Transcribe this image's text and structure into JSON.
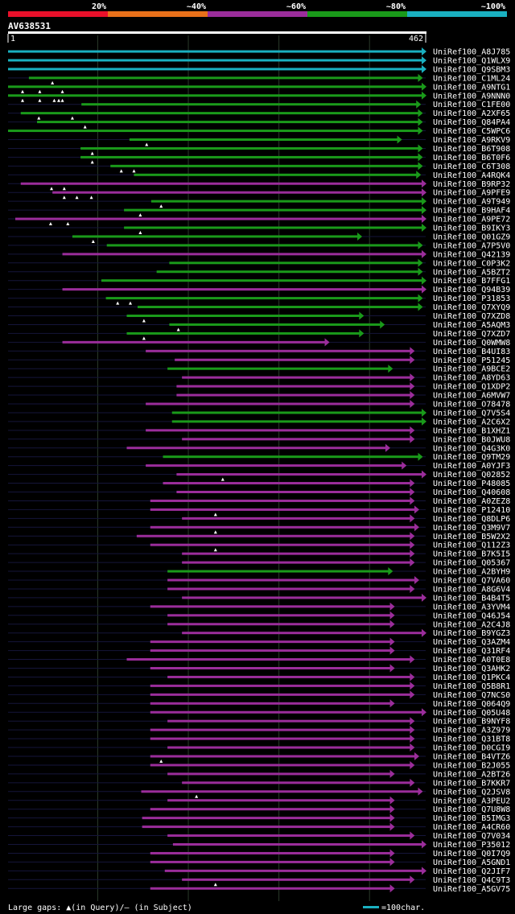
{
  "query_id": "AV638531",
  "query_start": "1",
  "query_end": "462",
  "identity_legend": [
    {
      "label": "20%",
      "color": "#e8102a"
    },
    {
      "label": "~40%",
      "color": "#e8701a"
    },
    {
      "label": "~60%",
      "color": "#9b2d9b"
    },
    {
      "label": "~80%",
      "color": "#1a9a1a"
    },
    {
      "label": "~100%",
      "color": "#1ab0c0"
    }
  ],
  "footer": {
    "gaps_label": "Large gaps: ▲(in Query)/– (in Subject)",
    "scale_label": "=100char."
  },
  "colors": {
    "cyan": "#1ab0c0",
    "green": "#1a9a1a",
    "purple": "#9b2d9b"
  },
  "hits": [
    {
      "id": "UniRef100_A8J785",
      "c": "cyan",
      "s": 1,
      "e": 462,
      "t": []
    },
    {
      "id": "UniRef100_Q1WLX9",
      "c": "cyan",
      "s": 1,
      "e": 462,
      "t": []
    },
    {
      "id": "UniRef100_Q9SBM3",
      "c": "cyan",
      "s": 1,
      "e": 462,
      "t": []
    },
    {
      "id": "UniRef100_C1ML24",
      "c": "green",
      "s": 24,
      "e": 458,
      "t": [
        50
      ]
    },
    {
      "id": "UniRef100_A9NTG1",
      "c": "green",
      "s": 1,
      "e": 462,
      "t": [
        17,
        36,
        61
      ]
    },
    {
      "id": "UniRef100_A9NNN0",
      "c": "green",
      "s": 1,
      "e": 462,
      "t": [
        17,
        36,
        52,
        57,
        61
      ]
    },
    {
      "id": "UniRef100_C1FE00",
      "c": "green",
      "s": 82,
      "e": 456,
      "t": []
    },
    {
      "id": "UniRef100_A2XF65",
      "c": "green",
      "s": 15,
      "e": 458,
      "t": [
        35,
        72
      ]
    },
    {
      "id": "UniRef100_Q84PA4",
      "c": "green",
      "s": 33,
      "e": 458,
      "t": [
        86
      ]
    },
    {
      "id": "UniRef100_C5WPC6",
      "c": "green",
      "s": 1,
      "e": 458,
      "t": []
    },
    {
      "id": "UniRef100_A9RKV9",
      "c": "green",
      "s": 135,
      "e": 435,
      "t": [
        154
      ]
    },
    {
      "id": "UniRef100_B6T908",
      "c": "green",
      "s": 81,
      "e": 458,
      "t": [
        94
      ]
    },
    {
      "id": "UniRef100_B6T0F6",
      "c": "green",
      "s": 81,
      "e": 458,
      "t": [
        94
      ]
    },
    {
      "id": "UniRef100_C6T308",
      "c": "green",
      "s": 114,
      "e": 458,
      "t": [
        126,
        140
      ]
    },
    {
      "id": "UniRef100_A4RQK4",
      "c": "green",
      "s": 140,
      "e": 456,
      "t": []
    },
    {
      "id": "UniRef100_B9RP32",
      "c": "purple",
      "s": 15,
      "e": 462,
      "t": [
        49,
        63
      ]
    },
    {
      "id": "UniRef100_A9PFE9",
      "c": "purple",
      "s": 50,
      "e": 462,
      "t": [
        63,
        77,
        93
      ]
    },
    {
      "id": "UniRef100_A9T949",
      "c": "green",
      "s": 159,
      "e": 462,
      "t": [
        170
      ]
    },
    {
      "id": "UniRef100_B9HAF4",
      "c": "green",
      "s": 129,
      "e": 462,
      "t": [
        147
      ]
    },
    {
      "id": "UniRef100_A9PE72",
      "c": "purple",
      "s": 9,
      "e": 462,
      "t": [
        48,
        67
      ]
    },
    {
      "id": "UniRef100_B9IKY3",
      "c": "green",
      "s": 129,
      "e": 462,
      "t": [
        147
      ]
    },
    {
      "id": "UniRef100_Q01GZ9",
      "c": "green",
      "s": 72,
      "e": 391,
      "t": [
        95
      ]
    },
    {
      "id": "UniRef100_A7P5V0",
      "c": "green",
      "s": 110,
      "e": 458,
      "t": []
    },
    {
      "id": "UniRef100_Q42139",
      "c": "purple",
      "s": 61,
      "e": 462,
      "t": []
    },
    {
      "id": "UniRef100_C0P3K2",
      "c": "green",
      "s": 179,
      "e": 458,
      "t": []
    },
    {
      "id": "UniRef100_A5BZT2",
      "c": "green",
      "s": 165,
      "e": 458,
      "t": []
    },
    {
      "id": "UniRef100_B7FFG1",
      "c": "green",
      "s": 104,
      "e": 462,
      "t": []
    },
    {
      "id": "UniRef100_Q94B39",
      "c": "purple",
      "s": 61,
      "e": 462,
      "t": []
    },
    {
      "id": "UniRef100_P31853",
      "c": "green",
      "s": 109,
      "e": 458,
      "t": [
        122,
        136
      ]
    },
    {
      "id": "UniRef100_Q7XYQ9",
      "c": "green",
      "s": 144,
      "e": 458,
      "t": []
    },
    {
      "id": "UniRef100_Q7XZD8",
      "c": "green",
      "s": 132,
      "e": 393,
      "t": [
        151
      ]
    },
    {
      "id": "UniRef100_A5AQM3",
      "c": "green",
      "s": 179,
      "e": 416,
      "t": [
        189
      ]
    },
    {
      "id": "UniRef100_Q7XZD7",
      "c": "green",
      "s": 132,
      "e": 393,
      "t": [
        151
      ]
    },
    {
      "id": "UniRef100_Q0WMW8",
      "c": "purple",
      "s": 61,
      "e": 355,
      "t": []
    },
    {
      "id": "UniRef100_B4UI83",
      "c": "purple",
      "s": 153,
      "e": 449,
      "t": []
    },
    {
      "id": "UniRef100_P51245",
      "c": "purple",
      "s": 185,
      "e": 449,
      "t": []
    },
    {
      "id": "UniRef100_A9BCE2",
      "c": "green",
      "s": 177,
      "e": 425,
      "t": []
    },
    {
      "id": "UniRef100_A8YD63",
      "c": "purple",
      "s": 193,
      "e": 449,
      "t": []
    },
    {
      "id": "UniRef100_Q1XDP2",
      "c": "purple",
      "s": 187,
      "e": 449,
      "t": []
    },
    {
      "id": "UniRef100_A6MVW7",
      "c": "purple",
      "s": 187,
      "e": 449,
      "t": []
    },
    {
      "id": "UniRef100_O78478",
      "c": "purple",
      "s": 153,
      "e": 449,
      "t": []
    },
    {
      "id": "UniRef100_Q7V5S4",
      "c": "green",
      "s": 182,
      "e": 462,
      "t": []
    },
    {
      "id": "UniRef100_A2C6X2",
      "c": "green",
      "s": 182,
      "e": 462,
      "t": []
    },
    {
      "id": "UniRef100_B1XHZ1",
      "c": "purple",
      "s": 153,
      "e": 449,
      "t": []
    },
    {
      "id": "UniRef100_B0JWU8",
      "c": "purple",
      "s": 193,
      "e": 449,
      "t": []
    },
    {
      "id": "UniRef100_Q4G3K0",
      "c": "purple",
      "s": 132,
      "e": 422,
      "t": []
    },
    {
      "id": "UniRef100_Q9TM29",
      "c": "green",
      "s": 172,
      "e": 458,
      "t": []
    },
    {
      "id": "UniRef100_A0YJF3",
      "c": "purple",
      "s": 153,
      "e": 440,
      "t": []
    },
    {
      "id": "UniRef100_Q02852",
      "c": "purple",
      "s": 187,
      "e": 462,
      "t": [
        238
      ]
    },
    {
      "id": "UniRef100_P48085",
      "c": "purple",
      "s": 172,
      "e": 449,
      "t": []
    },
    {
      "id": "UniRef100_Q40608",
      "c": "purple",
      "s": 187,
      "e": 449,
      "t": []
    },
    {
      "id": "UniRef100_A0ZEZ8",
      "c": "purple",
      "s": 158,
      "e": 449,
      "t": []
    },
    {
      "id": "UniRef100_P12410",
      "c": "purple",
      "s": 158,
      "e": 454,
      "t": [
        230
      ]
    },
    {
      "id": "UniRef100_Q8DLP6",
      "c": "purple",
      "s": 193,
      "e": 449,
      "t": []
    },
    {
      "id": "UniRef100_Q3M9V7",
      "c": "purple",
      "s": 158,
      "e": 454,
      "t": [
        230
      ]
    },
    {
      "id": "UniRef100_B5W2X2",
      "c": "purple",
      "s": 143,
      "e": 449,
      "t": []
    },
    {
      "id": "UniRef100_Q112Z3",
      "c": "purple",
      "s": 158,
      "e": 449,
      "t": [
        230
      ]
    },
    {
      "id": "UniRef100_B7K5I5",
      "c": "purple",
      "s": 193,
      "e": 449,
      "t": []
    },
    {
      "id": "UniRef100_Q05367",
      "c": "purple",
      "s": 193,
      "e": 449,
      "t": []
    },
    {
      "id": "UniRef100_A2BYH9",
      "c": "green",
      "s": 177,
      "e": 425,
      "t": []
    },
    {
      "id": "UniRef100_Q7VA60",
      "c": "purple",
      "s": 177,
      "e": 454,
      "t": []
    },
    {
      "id": "UniRef100_A8G6V4",
      "c": "purple",
      "s": 177,
      "e": 449,
      "t": []
    },
    {
      "id": "UniRef100_B4B4T5",
      "c": "purple",
      "s": 193,
      "e": 462,
      "t": []
    },
    {
      "id": "UniRef100_A3YVM4",
      "c": "purple",
      "s": 158,
      "e": 427,
      "t": []
    },
    {
      "id": "UniRef100_Q46J54",
      "c": "purple",
      "s": 177,
      "e": 427,
      "t": []
    },
    {
      "id": "UniRef100_A2C4J8",
      "c": "purple",
      "s": 177,
      "e": 427,
      "t": []
    },
    {
      "id": "UniRef100_B9YGZ3",
      "c": "purple",
      "s": 193,
      "e": 462,
      "t": []
    },
    {
      "id": "UniRef100_Q3AZM4",
      "c": "purple",
      "s": 158,
      "e": 427,
      "t": []
    },
    {
      "id": "UniRef100_Q31RF4",
      "c": "purple",
      "s": 158,
      "e": 427,
      "t": []
    },
    {
      "id": "UniRef100_A0T0E8",
      "c": "purple",
      "s": 132,
      "e": 449,
      "t": []
    },
    {
      "id": "UniRef100_Q3AHK2",
      "c": "purple",
      "s": 158,
      "e": 427,
      "t": []
    },
    {
      "id": "UniRef100_Q1PKC4",
      "c": "purple",
      "s": 177,
      "e": 449,
      "t": []
    },
    {
      "id": "UniRef100_Q5B8R1",
      "c": "purple",
      "s": 158,
      "e": 449,
      "t": []
    },
    {
      "id": "UniRef100_Q7NCS0",
      "c": "purple",
      "s": 158,
      "e": 449,
      "t": []
    },
    {
      "id": "UniRef100_Q064Q9",
      "c": "purple",
      "s": 158,
      "e": 427,
      "t": []
    },
    {
      "id": "UniRef100_Q05U48",
      "c": "purple",
      "s": 158,
      "e": 462,
      "t": []
    },
    {
      "id": "UniRef100_B9NYF8",
      "c": "purple",
      "s": 177,
      "e": 449,
      "t": []
    },
    {
      "id": "UniRef100_A3Z979",
      "c": "purple",
      "s": 158,
      "e": 449,
      "t": []
    },
    {
      "id": "UniRef100_Q31BT8",
      "c": "purple",
      "s": 158,
      "e": 449,
      "t": []
    },
    {
      "id": "UniRef100_D0CGI9",
      "c": "purple",
      "s": 177,
      "e": 449,
      "t": []
    },
    {
      "id": "UniRef100_B4VTZ6",
      "c": "purple",
      "s": 158,
      "e": 454,
      "t": [
        170
      ]
    },
    {
      "id": "UniRef100_B2J055",
      "c": "purple",
      "s": 158,
      "e": 449,
      "t": []
    },
    {
      "id": "UniRef100_A2BT26",
      "c": "purple",
      "s": 177,
      "e": 427,
      "t": []
    },
    {
      "id": "UniRef100_B7KKR7",
      "c": "purple",
      "s": 193,
      "e": 449,
      "t": []
    },
    {
      "id": "UniRef100_Q2JSV8",
      "c": "purple",
      "s": 148,
      "e": 458,
      "t": [
        209
      ]
    },
    {
      "id": "UniRef100_A3PEU2",
      "c": "purple",
      "s": 177,
      "e": 427,
      "t": []
    },
    {
      "id": "UniRef100_Q7U8W8",
      "c": "purple",
      "s": 158,
      "e": 427,
      "t": []
    },
    {
      "id": "UniRef100_B5IMG3",
      "c": "purple",
      "s": 149,
      "e": 427,
      "t": []
    },
    {
      "id": "UniRef100_A4CR60",
      "c": "purple",
      "s": 149,
      "e": 427,
      "t": []
    },
    {
      "id": "UniRef100_Q7V034",
      "c": "purple",
      "s": 177,
      "e": 449,
      "t": []
    },
    {
      "id": "UniRef100_P35012",
      "c": "purple",
      "s": 183,
      "e": 462,
      "t": []
    },
    {
      "id": "UniRef100_Q0I7Q9",
      "c": "purple",
      "s": 158,
      "e": 427,
      "t": []
    },
    {
      "id": "UniRef100_A5GND1",
      "c": "purple",
      "s": 158,
      "e": 427,
      "t": []
    },
    {
      "id": "UniRef100_Q2JIF7",
      "c": "purple",
      "s": 174,
      "e": 462,
      "t": []
    },
    {
      "id": "UniRef100_Q4C9T3",
      "c": "purple",
      "s": 193,
      "e": 449,
      "t": [
        230
      ]
    },
    {
      "id": "UniRef100_A5GV75",
      "c": "purple",
      "s": 158,
      "e": 427,
      "t": []
    }
  ]
}
